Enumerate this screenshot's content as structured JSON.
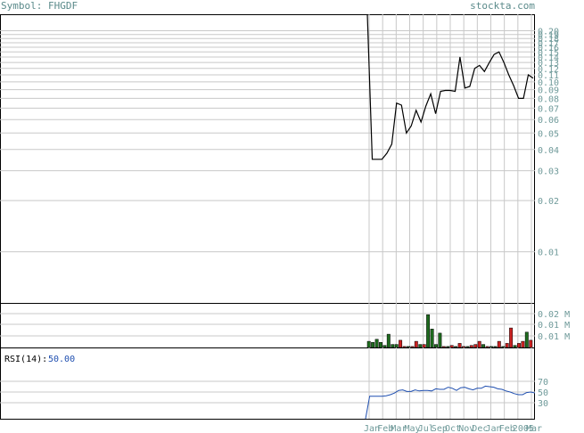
{
  "header": {
    "symbol_label": "Symbol: FHGDF",
    "site": "stockta.com"
  },
  "colors": {
    "price_line": "#000000",
    "grid": "#c8c8c8",
    "tick_text": "#6f9a9a",
    "volume_up": "#1e6b1e",
    "volume_down": "#cc2222",
    "rsi_line": "#1f4fb0",
    "rsi_value": "#1f4fb0"
  },
  "chart_data": [
    {
      "type": "line",
      "title": "",
      "xlabel": "",
      "ylabel": "",
      "scale": "log",
      "ylim": [
        0.005,
        0.25
      ],
      "y_ticks": [
        "0.20",
        "0.19",
        "0.18",
        "0.17",
        "0.16",
        "0.15",
        "0.14",
        "0.13",
        "0.12",
        "0.11",
        "0.10",
        "0.09",
        "0.08",
        "0.07",
        "0.06",
        "0.05",
        "0.04",
        "0.03",
        "0.02",
        "0.01"
      ],
      "x_ticks": [
        "Jan",
        "Feb",
        "Mar",
        "May",
        "Jul",
        "Sep",
        "Oct",
        "Nov",
        "Dec",
        "Jan",
        "Feb",
        "2005",
        "Mar"
      ],
      "grid": true,
      "series": [
        {
          "values": [
            0.25,
            0.035,
            0.035,
            0.035,
            0.038,
            0.043,
            0.075,
            0.073,
            0.05,
            0.055,
            0.068,
            0.058,
            0.072,
            0.085,
            0.065,
            0.088,
            0.089,
            0.089,
            0.088,
            0.14,
            0.092,
            0.094,
            0.12,
            0.125,
            0.115,
            0.13,
            0.145,
            0.15,
            0.13,
            0.11,
            0.095,
            0.08,
            0.08,
            0.11,
            0.105
          ]
        }
      ]
    },
    {
      "type": "bar",
      "title": "",
      "ylabel": "",
      "y_ticks": [
        "0.02 M",
        "0.01 M",
        "0.01 M"
      ],
      "series": [
        {
          "values": [
            6,
            5,
            8,
            5,
            2,
            13,
            3,
            3,
            7,
            1,
            1,
            1,
            6,
            3,
            3,
            32,
            18,
            3,
            14,
            1,
            1,
            2,
            1,
            4,
            1,
            1,
            2,
            3,
            6,
            3,
            1,
            1,
            1,
            6,
            1,
            4,
            19,
            2,
            4,
            6,
            15,
            7
          ]
        }
      ],
      "up": [
        true,
        true,
        true,
        true,
        true,
        true,
        true,
        true,
        false,
        false,
        true,
        false,
        false,
        true,
        false,
        true,
        true,
        true,
        true,
        false,
        true,
        false,
        true,
        false,
        false,
        true,
        false,
        false,
        false,
        true,
        false,
        true,
        true,
        false,
        true,
        false,
        false,
        true,
        false,
        false,
        true,
        false
      ]
    },
    {
      "type": "line",
      "title": "",
      "label": "RSI(14):",
      "value": "50.00",
      "y_ticks": [
        "70",
        "50",
        "30"
      ],
      "ylim": [
        0,
        100
      ],
      "series": [
        {
          "values": [
            0,
            42,
            42,
            42,
            42,
            43,
            45,
            48,
            53,
            54,
            51,
            51,
            54,
            52,
            53,
            53,
            52,
            56,
            55,
            55,
            59,
            57,
            53,
            58,
            59,
            56,
            54,
            57,
            57,
            61,
            60,
            59,
            56,
            55,
            52,
            50,
            47,
            45,
            45,
            49,
            50,
            48
          ]
        }
      ]
    }
  ]
}
